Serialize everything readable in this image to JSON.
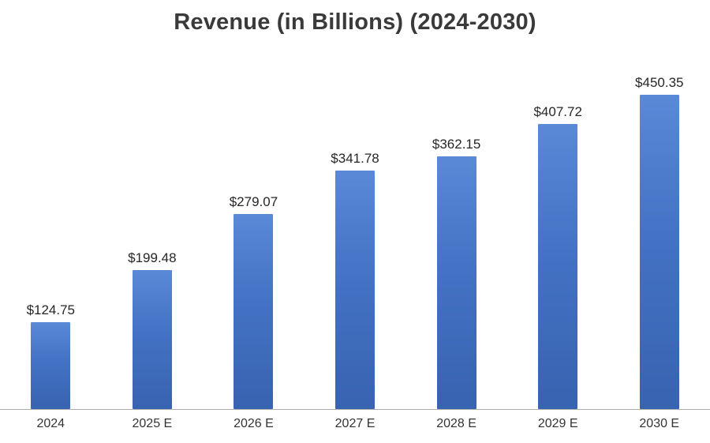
{
  "title": "Revenue (in Billions) (2024-2030)",
  "colors": {
    "bar_fill": "#4472c4",
    "bar_fill_light": "#5a89d8",
    "bar_fill_dark": "#3763b0",
    "title_text": "#3a3a3a",
    "label_text": "#262626",
    "axis_line": "#adadad",
    "background": "#ffffff"
  },
  "chart_data": {
    "type": "bar",
    "title": "Revenue (in Billions) (2024-2030)",
    "categories": [
      "2024",
      "2025 E",
      "2026 E",
      "2027 E",
      "2028 E",
      "2029 E",
      "2030 E"
    ],
    "values": [
      124.75,
      199.48,
      279.07,
      341.78,
      362.15,
      407.72,
      450.35
    ],
    "value_labels": [
      "$124.75",
      "$199.48",
      "$279.07",
      "$341.78",
      "$362.15",
      "$407.72",
      "$450.35"
    ],
    "xlabel": "",
    "ylabel": "",
    "ylim": [
      0,
      520
    ],
    "grid": false,
    "legend": false,
    "data_labels_position": "above-bar"
  }
}
